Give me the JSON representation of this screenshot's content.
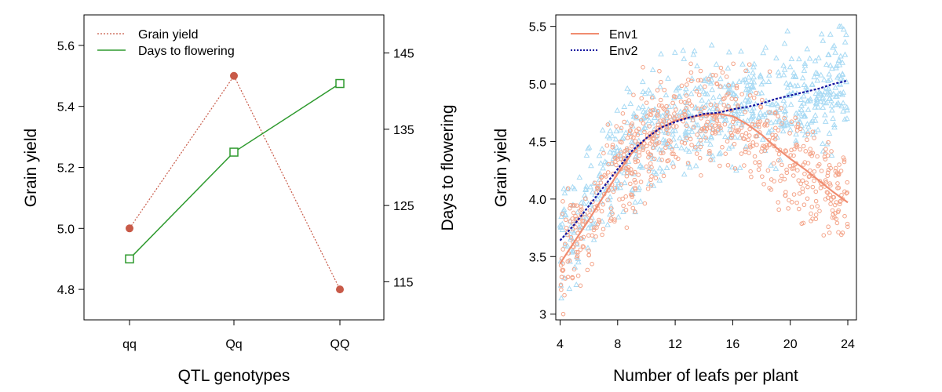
{
  "chart_data": [
    {
      "type": "line",
      "title": "",
      "xlabel": "QTL genotypes",
      "ylabel": "Grain yield",
      "ylabel_right": "Days to flowering",
      "categories": [
        "qq",
        "Qq",
        "QQ"
      ],
      "ylim": [
        4.7,
        5.7
      ],
      "y_ticks": [
        "4.8",
        "5.0",
        "5.2",
        "5.4",
        "5.6"
      ],
      "ylim_right": [
        110,
        150
      ],
      "y_ticks_right": [
        "115",
        "125",
        "135",
        "145"
      ],
      "legend_position": "top-left",
      "series": [
        {
          "name": "Grain yield",
          "axis": "left",
          "values": [
            5.0,
            5.5,
            4.8
          ],
          "color": "#c85a48",
          "style": "dotted",
          "marker": "filled-circle"
        },
        {
          "name": "Days to flowering",
          "axis": "right",
          "values": [
            118,
            132,
            141
          ],
          "color": "#2e9a2e",
          "style": "solid",
          "marker": "open-square"
        }
      ]
    },
    {
      "type": "scatter",
      "title": "",
      "xlabel": "Number of leafs per plant",
      "ylabel": "Grain yield",
      "xlim": [
        3.7,
        24.6
      ],
      "ylim": [
        2.95,
        5.6
      ],
      "x_ticks": [
        "4",
        "8",
        "12",
        "16",
        "20",
        "24"
      ],
      "y_ticks": [
        "3",
        "3.5",
        "4.0",
        "4.5",
        "5.0",
        "5.5"
      ],
      "legend_position": "top-left",
      "series": [
        {
          "name": "Env1",
          "color": "#f08c70",
          "point_color": "#f4a58a",
          "style": "solid",
          "marker": "open-circle",
          "curve_x": [
            4,
            5,
            6,
            7,
            8,
            9,
            10,
            11,
            12,
            13,
            14,
            15,
            16,
            17,
            18,
            19,
            20,
            21,
            22,
            23,
            24
          ],
          "curve_y": [
            3.44,
            3.63,
            3.82,
            4.02,
            4.22,
            4.4,
            4.53,
            4.62,
            4.68,
            4.71,
            4.73,
            4.74,
            4.72,
            4.65,
            4.56,
            4.45,
            4.35,
            4.26,
            4.16,
            4.06,
            3.97
          ]
        },
        {
          "name": "Env2",
          "color": "#1414a0",
          "point_color": "#a8daf4",
          "style": "dotted",
          "marker": "open-triangle",
          "curve_x": [
            4,
            5,
            6,
            7,
            8,
            9,
            10,
            11,
            12,
            13,
            14,
            15,
            16,
            17,
            18,
            19,
            20,
            21,
            22,
            23,
            24
          ],
          "curve_y": [
            3.64,
            3.78,
            3.94,
            4.1,
            4.26,
            4.42,
            4.53,
            4.62,
            4.67,
            4.71,
            4.74,
            4.75,
            4.78,
            4.8,
            4.83,
            4.87,
            4.9,
            4.93,
            4.96,
            5.0,
            5.03
          ]
        }
      ]
    }
  ]
}
